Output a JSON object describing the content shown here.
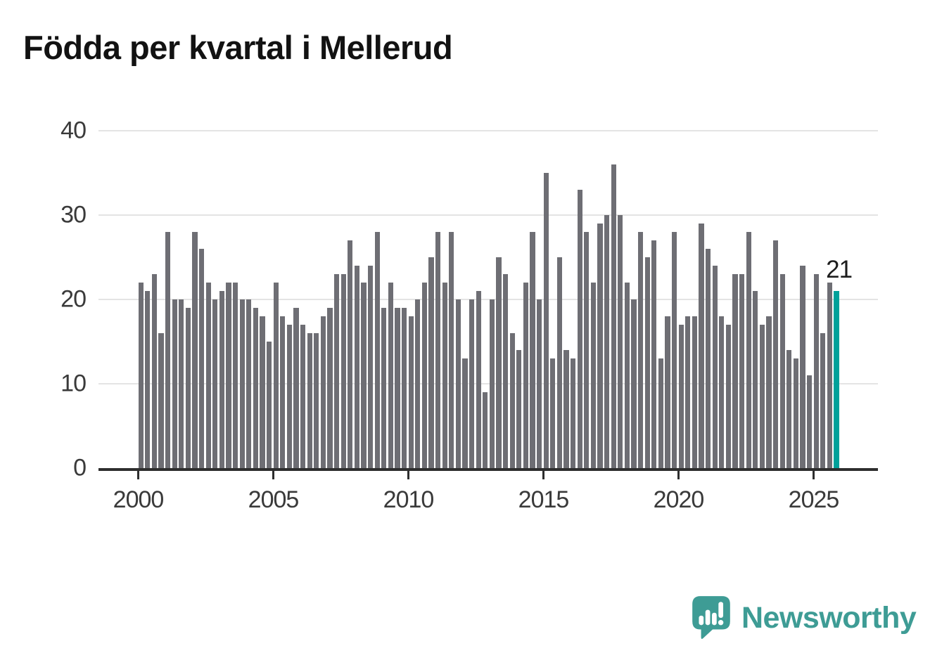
{
  "title": "Födda per kvartal i Mellerud",
  "chart_data": {
    "type": "bar",
    "title": "Födda per kvartal i Mellerud",
    "frequency": "quarterly",
    "x_start": "2000 Q1",
    "x_end": "2025 Q4",
    "x_tick_labels": [
      "2000",
      "2005",
      "2010",
      "2015",
      "2020",
      "2025"
    ],
    "y_ticks": [
      0,
      10,
      20,
      30,
      40
    ],
    "ylim": [
      0,
      42
    ],
    "grid": "horizontal",
    "legend": "none",
    "bar_color": "#6e6e74",
    "highlight_color": "#00a19a",
    "highlight_index": 103,
    "highlight_label": "21",
    "values": [
      22,
      21,
      23,
      16,
      28,
      20,
      20,
      19,
      28,
      26,
      22,
      20,
      21,
      22,
      22,
      20,
      20,
      19,
      18,
      15,
      22,
      18,
      17,
      19,
      17,
      16,
      16,
      18,
      19,
      23,
      23,
      27,
      24,
      22,
      24,
      28,
      19,
      22,
      19,
      19,
      18,
      20,
      22,
      25,
      28,
      22,
      28,
      20,
      13,
      20,
      21,
      9,
      20,
      25,
      23,
      16,
      14,
      22,
      28,
      20,
      35,
      13,
      25,
      14,
      13,
      33,
      28,
      22,
      29,
      30,
      36,
      30,
      22,
      20,
      28,
      25,
      27,
      13,
      18,
      28,
      17,
      18,
      18,
      29,
      26,
      24,
      18,
      17,
      23,
      23,
      28,
      21,
      17,
      18,
      27,
      23,
      14,
      13,
      24,
      11,
      23,
      16,
      22,
      21
    ]
  },
  "branding": {
    "name": "Newsworthy",
    "color": "#3e9c95",
    "icon": "newsworthy-speech-bubble-chart-icon"
  }
}
